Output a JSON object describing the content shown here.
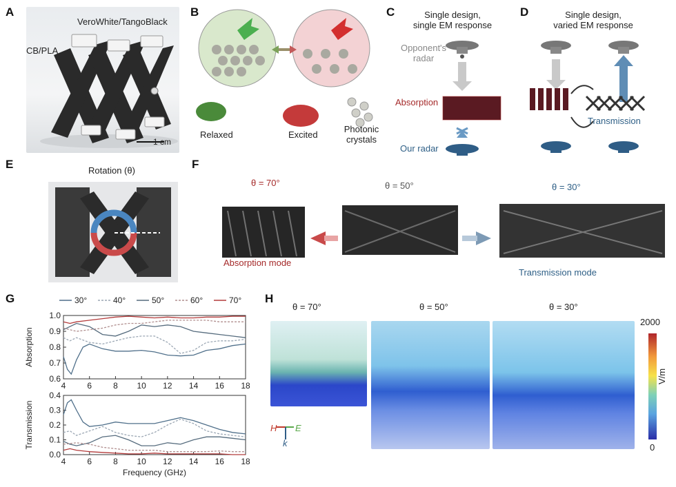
{
  "panels": {
    "A": {
      "letter": "A",
      "label_top": "VeroWhite/TangoBlack",
      "label_left": "CB/PLA",
      "scale_bar": "1 cm"
    },
    "B": {
      "letter": "B",
      "relaxed": "Relaxed",
      "excited": "Excited",
      "photonic_line1": "Photonic",
      "photonic_line2": "crystals"
    },
    "C": {
      "letter": "C",
      "title_line1": "Single design,",
      "title_line2": "single EM response",
      "opponent_line1": "Opponent's",
      "opponent_line2": "radar",
      "absorption": "Absorption",
      "our_radar": "Our radar"
    },
    "D": {
      "letter": "D",
      "title_line1": "Single design,",
      "title_line2": "varied EM response",
      "transmission": "Transmission"
    },
    "E": {
      "letter": "E",
      "title": "Rotation (θ)"
    },
    "F": {
      "letter": "F",
      "angle_70": "θ = 70°",
      "angle_50": "θ = 50°",
      "angle_30": "θ = 30°",
      "absorption_mode": "Absorption mode",
      "transmission_mode": "Transmission mode"
    },
    "G": {
      "letter": "G"
    },
    "H": {
      "letter": "H",
      "angle_70": "θ = 70°",
      "angle_50": "θ = 50°",
      "angle_30": "θ = 30°",
      "colorbar_max": "2000",
      "colorbar_min": "0",
      "colorbar_unit": "V/m",
      "axis_H": "H",
      "axis_E": "E",
      "axis_k": "k"
    }
  },
  "colors": {
    "absorption_red": "#a52a2a",
    "transmission_blue": "#2e5f86",
    "green_arrow": "#5aa84a",
    "dark_structure": "#2b2b2b"
  },
  "chart_data": [
    {
      "type": "line",
      "title": "",
      "xlabel": "Frequency (GHz)",
      "ylabel": "Absorption",
      "xlim": [
        4,
        18
      ],
      "ylim": [
        0.6,
        1.0
      ],
      "xticks": [
        "4",
        "6",
        "8",
        "10",
        "12",
        "14",
        "16",
        "18"
      ],
      "yticks": [
        "0.6",
        "0.7",
        "0.8",
        "0.9",
        "1.0"
      ],
      "legend": [
        "30°",
        "40°",
        "50°",
        "60°",
        "70°"
      ],
      "legend_position": "top",
      "series": [
        {
          "name": "30°",
          "color": "#4f6f8a",
          "dash": false,
          "x": [
            4,
            4.3,
            4.6,
            5,
            5.5,
            6,
            7,
            8,
            9,
            10,
            11,
            12,
            13,
            14,
            15,
            16,
            17,
            18
          ],
          "y": [
            0.74,
            0.66,
            0.63,
            0.72,
            0.8,
            0.82,
            0.79,
            0.775,
            0.775,
            0.78,
            0.77,
            0.75,
            0.745,
            0.75,
            0.78,
            0.79,
            0.81,
            0.82
          ]
        },
        {
          "name": "40°",
          "color": "#9aa6b3",
          "dash": true,
          "x": [
            4,
            4.5,
            5,
            6,
            7,
            8,
            9,
            10,
            11,
            12,
            13,
            14,
            15,
            16,
            17,
            18
          ],
          "y": [
            0.86,
            0.84,
            0.86,
            0.83,
            0.82,
            0.84,
            0.86,
            0.87,
            0.87,
            0.83,
            0.76,
            0.78,
            0.83,
            0.84,
            0.84,
            0.85
          ]
        },
        {
          "name": "50°",
          "color": "#556b7d",
          "dash": false,
          "x": [
            4,
            4.5,
            5,
            6,
            7,
            8,
            9,
            10,
            11,
            12,
            13,
            14,
            15,
            16,
            17,
            18
          ],
          "y": [
            0.91,
            0.93,
            0.95,
            0.93,
            0.88,
            0.87,
            0.9,
            0.94,
            0.93,
            0.94,
            0.93,
            0.9,
            0.89,
            0.88,
            0.87,
            0.86
          ]
        },
        {
          "name": "60°",
          "color": "#b08e8e",
          "dash": true,
          "x": [
            4,
            5,
            6,
            7,
            8,
            9,
            10,
            11,
            12,
            13,
            14,
            15,
            16,
            17,
            18
          ],
          "y": [
            0.92,
            0.9,
            0.91,
            0.92,
            0.94,
            0.95,
            0.95,
            0.96,
            0.97,
            0.97,
            0.97,
            0.97,
            0.96,
            0.96,
            0.96
          ]
        },
        {
          "name": "70°",
          "color": "#b33a3a",
          "dash": false,
          "x": [
            4,
            4.5,
            5,
            6,
            7,
            8,
            9,
            10,
            11,
            12,
            13,
            14,
            15,
            16,
            17,
            18
          ],
          "y": [
            0.96,
            0.95,
            0.96,
            0.97,
            0.98,
            0.99,
            0.995,
            0.99,
            0.985,
            0.99,
            0.985,
            0.985,
            0.99,
            0.99,
            0.995,
            0.995
          ]
        }
      ]
    },
    {
      "type": "line",
      "title": "",
      "xlabel": "Frequency (GHz)",
      "ylabel": "Transmission",
      "xlim": [
        4,
        18
      ],
      "ylim": [
        0.0,
        0.4
      ],
      "xticks": [
        "4",
        "6",
        "8",
        "10",
        "12",
        "14",
        "16",
        "18"
      ],
      "yticks": [
        "0.0",
        "0.1",
        "0.2",
        "0.3",
        "0.4"
      ],
      "series": [
        {
          "name": "30°",
          "color": "#4f6f8a",
          "dash": false,
          "x": [
            4,
            4.3,
            4.6,
            5,
            5.5,
            6,
            7,
            8,
            9,
            10,
            11,
            12,
            13,
            14,
            15,
            16,
            17,
            18
          ],
          "y": [
            0.27,
            0.35,
            0.37,
            0.3,
            0.22,
            0.19,
            0.2,
            0.22,
            0.21,
            0.21,
            0.21,
            0.23,
            0.25,
            0.23,
            0.2,
            0.17,
            0.15,
            0.14
          ]
        },
        {
          "name": "40°",
          "color": "#9aa6b3",
          "dash": true,
          "x": [
            4,
            4.5,
            5,
            6,
            7,
            8,
            9,
            10,
            11,
            12,
            13,
            14,
            15,
            16,
            17,
            18
          ],
          "y": [
            0.15,
            0.16,
            0.13,
            0.16,
            0.19,
            0.15,
            0.13,
            0.12,
            0.15,
            0.2,
            0.24,
            0.21,
            0.16,
            0.14,
            0.13,
            0.12
          ]
        },
        {
          "name": "50°",
          "color": "#556b7d",
          "dash": false,
          "x": [
            4,
            4.5,
            5,
            6,
            7,
            8,
            9,
            10,
            11,
            12,
            13,
            14,
            15,
            16,
            17,
            18
          ],
          "y": [
            0.09,
            0.07,
            0.06,
            0.08,
            0.12,
            0.13,
            0.1,
            0.06,
            0.06,
            0.08,
            0.07,
            0.1,
            0.12,
            0.12,
            0.11,
            0.1
          ]
        },
        {
          "name": "60°",
          "color": "#b08e8e",
          "dash": true,
          "x": [
            4,
            5,
            6,
            7,
            8,
            9,
            10,
            11,
            12,
            13,
            14,
            15,
            16,
            17,
            18
          ],
          "y": [
            0.07,
            0.08,
            0.07,
            0.05,
            0.04,
            0.03,
            0.03,
            0.03,
            0.02,
            0.02,
            0.02,
            0.02,
            0.025,
            0.02,
            0.02
          ]
        },
        {
          "name": "70°",
          "color": "#b33a3a",
          "dash": false,
          "x": [
            4,
            4.5,
            5,
            6,
            7,
            8,
            9,
            10,
            11,
            12,
            13,
            14,
            15,
            16,
            17,
            18
          ],
          "y": [
            0.03,
            0.04,
            0.03,
            0.02,
            0.015,
            0.01,
            0.005,
            0.005,
            0.01,
            0.005,
            0.005,
            0.005,
            0.005,
            0.005,
            0.0,
            0.0
          ]
        }
      ]
    }
  ]
}
